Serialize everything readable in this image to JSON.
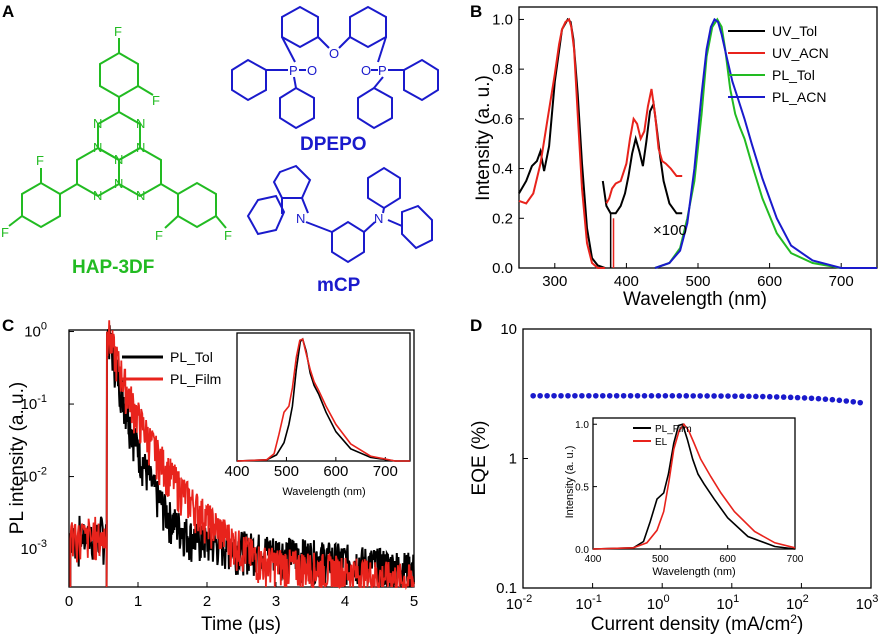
{
  "colors": {
    "black": "#000000",
    "red": "#e8231c",
    "green": "#22bb22",
    "blue": "#1a1acc"
  },
  "panels": {
    "A": "A",
    "B": "B",
    "C": "C",
    "D": "D"
  },
  "panelA": {
    "molecules": [
      "HAP-3DF",
      "DPEPO",
      "mCP"
    ],
    "atoms": {
      "F": "F",
      "N": "N",
      "O": "O",
      "P": "P"
    }
  },
  "chart_data": [
    {
      "panel": "B",
      "type": "line",
      "xlabel": "Wavelength (nm)",
      "ylabel": "Intensity (a. u.)",
      "xlim": [
        250,
        750
      ],
      "ylim": [
        0,
        1.05
      ],
      "xticks": [
        300,
        400,
        500,
        600,
        700
      ],
      "yticks": [
        0.0,
        0.2,
        0.4,
        0.6,
        0.8,
        1.0
      ],
      "ytick_labels": [
        "0.0",
        "0.2",
        "0.4",
        "0.6",
        "0.8",
        "1.0"
      ],
      "annotation": "×100",
      "series": [
        {
          "name": "UV_Tol",
          "color": "#000000",
          "x": [
            250,
            260,
            268,
            275,
            280,
            285,
            292,
            300,
            310,
            318,
            322,
            326,
            332,
            338,
            345,
            352,
            360,
            370
          ],
          "y": [
            0.3,
            0.35,
            0.41,
            0.43,
            0.47,
            0.39,
            0.49,
            0.75,
            0.96,
            1.0,
            0.99,
            0.92,
            0.7,
            0.42,
            0.16,
            0.04,
            0.01,
            0.0
          ]
        },
        {
          "name": "UV_Tol_x100",
          "color": "#000000",
          "x": [
            367,
            372,
            378,
            385,
            392,
            398,
            403,
            408,
            413,
            418,
            423,
            428,
            433,
            438,
            442,
            447,
            452,
            460,
            470,
            478
          ],
          "y": [
            0.35,
            0.25,
            0.22,
            0.22,
            0.25,
            0.3,
            0.37,
            0.46,
            0.52,
            0.47,
            0.41,
            0.51,
            0.63,
            0.66,
            0.57,
            0.45,
            0.35,
            0.26,
            0.22,
            0.22
          ]
        },
        {
          "name": "UV_ACN",
          "color": "#e8231c",
          "x": [
            250,
            260,
            270,
            280,
            290,
            300,
            306,
            310,
            315,
            320,
            323,
            327,
            332,
            338,
            345,
            352,
            360,
            370
          ],
          "y": [
            0.27,
            0.26,
            0.3,
            0.42,
            0.6,
            0.78,
            0.9,
            0.96,
            0.99,
            1.0,
            0.97,
            0.88,
            0.62,
            0.32,
            0.1,
            0.02,
            0.0,
            0.0
          ]
        },
        {
          "name": "UV_ACN_x100",
          "color": "#e8231c",
          "x": [
            372,
            376,
            380,
            385,
            392,
            400,
            405,
            410,
            415,
            420,
            425,
            430,
            435,
            440,
            445,
            450,
            455,
            462,
            470,
            478
          ],
          "y": [
            0.26,
            0.28,
            0.32,
            0.34,
            0.35,
            0.42,
            0.52,
            0.6,
            0.58,
            0.52,
            0.55,
            0.65,
            0.72,
            0.62,
            0.48,
            0.43,
            0.42,
            0.4,
            0.37,
            0.37
          ]
        },
        {
          "name": "PL_Tol",
          "color": "#22bb22",
          "x": [
            440,
            460,
            475,
            485,
            495,
            505,
            512,
            520,
            527,
            533,
            538,
            545,
            552,
            558,
            565,
            575,
            590,
            610,
            630,
            660,
            700,
            750
          ],
          "y": [
            0.0,
            0.02,
            0.08,
            0.2,
            0.35,
            0.62,
            0.85,
            0.97,
            1.0,
            0.97,
            0.88,
            0.72,
            0.62,
            0.57,
            0.52,
            0.42,
            0.28,
            0.14,
            0.06,
            0.02,
            0.0,
            0.0
          ]
        },
        {
          "name": "PL_ACN",
          "color": "#1a1acc",
          "x": [
            440,
            460,
            475,
            485,
            495,
            505,
            512,
            518,
            523,
            528,
            533,
            540,
            548,
            556,
            565,
            575,
            590,
            610,
            630,
            660,
            700,
            750
          ],
          "y": [
            0.0,
            0.02,
            0.07,
            0.18,
            0.4,
            0.7,
            0.88,
            0.97,
            1.0,
            0.99,
            0.94,
            0.85,
            0.75,
            0.68,
            0.6,
            0.5,
            0.36,
            0.2,
            0.09,
            0.03,
            0.0,
            0.0
          ]
        }
      ],
      "markers": [
        {
          "x": 378,
          "y": 0.22
        },
        {
          "x": 382,
          "y": 0.2
        }
      ]
    },
    {
      "panel": "C",
      "type": "line",
      "yscale": "log",
      "xlabel": "Time (μs)",
      "ylabel": "PL intensity (a. u.)",
      "xlim": [
        0,
        5
      ],
      "ylim": [
        0.0003,
        1.05
      ],
      "xticks": [
        0,
        1,
        2,
        3,
        4,
        5
      ],
      "xtick_labels": [
        "0",
        "1",
        "2",
        "3",
        "4",
        "5"
      ],
      "yticks": [
        0.001,
        0.01,
        0.1,
        1
      ],
      "ytick_bases": [
        "10",
        "10",
        "10",
        "10"
      ],
      "ytick_exps": [
        "-3",
        "-2",
        "-1",
        "0"
      ],
      "series": [
        {
          "name": "PL_Tol",
          "color": "#000000",
          "x": [
            0.55,
            0.6,
            0.7,
            0.8,
            0.9,
            1.0,
            1.1,
            1.2,
            1.3,
            1.4,
            1.5,
            1.6,
            1.8,
            2.0
          ],
          "y": [
            1.0,
            0.6,
            0.25,
            0.1,
            0.045,
            0.022,
            0.012,
            0.007,
            0.0045,
            0.003,
            0.0022,
            0.0018,
            0.0013,
            0.0011
          ]
        },
        {
          "name": "PL_Film",
          "color": "#e8231c",
          "x": [
            0.55,
            0.6,
            0.7,
            0.8,
            0.9,
            1.0,
            1.2,
            1.4,
            1.6,
            1.8,
            2.0,
            2.2,
            2.4,
            2.6,
            2.8
          ],
          "y": [
            1.0,
            0.7,
            0.35,
            0.18,
            0.1,
            0.06,
            0.025,
            0.012,
            0.0065,
            0.0038,
            0.0024,
            0.0016,
            0.0011,
            0.0008,
            0.0006
          ]
        }
      ],
      "inset": {
        "xlabel": "Wavelength (nm)",
        "xlim": [
          400,
          750
        ],
        "ylim": [
          0,
          1.05
        ],
        "xticks": [
          400,
          500,
          600,
          700
        ],
        "xtick_labels": [
          "400",
          "500",
          "600",
          "700"
        ],
        "series": [
          {
            "name": "PL_Tol",
            "color": "#000000",
            "x": [
              400,
              460,
              480,
              495,
              505,
              512,
              520,
              528,
              533,
              540,
              548,
              556,
              565,
              580,
              600,
              630,
              670,
              720,
              750
            ],
            "y": [
              0,
              0.01,
              0.05,
              0.15,
              0.3,
              0.45,
              0.75,
              0.98,
              1.0,
              0.9,
              0.72,
              0.62,
              0.55,
              0.4,
              0.24,
              0.1,
              0.03,
              0.0,
              0.0
            ]
          },
          {
            "name": "PL_Film",
            "color": "#e8231c",
            "x": [
              400,
              460,
              475,
              485,
              495,
              505,
              512,
              520,
              527,
              533,
              540,
              548,
              556,
              565,
              580,
              600,
              630,
              670,
              720,
              750
            ],
            "y": [
              0,
              0.01,
              0.06,
              0.22,
              0.4,
              0.45,
              0.6,
              0.85,
              0.99,
              1.0,
              0.88,
              0.75,
              0.65,
              0.58,
              0.45,
              0.3,
              0.14,
              0.04,
              0.0,
              0.0
            ]
          }
        ]
      }
    },
    {
      "panel": "D",
      "type": "scatter",
      "xscale": "log",
      "yscale": "log",
      "xlabel": "Current density (mA/cm²)",
      "xlabel_main": "Current density (mA/cm",
      "xlabel_sup": "2",
      "xlabel_end": ")",
      "ylabel": "EQE (%)",
      "xlim": [
        0.01,
        1000
      ],
      "ylim": [
        0.1,
        10
      ],
      "xticks": [
        0.01,
        0.1,
        1,
        10,
        100,
        1000
      ],
      "xtick_bases": [
        "10",
        "10",
        "10",
        "10",
        "10",
        "10"
      ],
      "xtick_exps": [
        "-2",
        "-1",
        "0",
        "1",
        "2",
        "3"
      ],
      "yticks": [
        0.1,
        1,
        10
      ],
      "ytick_labels": [
        "0.1",
        "1",
        "10"
      ],
      "series": [
        {
          "name": "EQE",
          "color": "#1a1acc",
          "x_start": 0.014,
          "x_end": 700,
          "y_start": 3.05,
          "y_end": 2.7
        }
      ],
      "inset": {
        "xlabel": "Wavelength (nm)",
        "ylabel": "Intensity (a. u.)",
        "xlim": [
          400,
          700
        ],
        "ylim": [
          0,
          1.05
        ],
        "xticks": [
          400,
          500,
          600,
          700
        ],
        "xtick_labels": [
          "400",
          "500",
          "600",
          "700"
        ],
        "yticks": [
          0,
          0.5,
          1.0
        ],
        "ytick_labels": [
          "0.0",
          "0.5",
          "1.0"
        ],
        "series": [
          {
            "name": "PL_Film",
            "color": "#000000",
            "x": [
              400,
              460,
              475,
              485,
              495,
              505,
              512,
              520,
              527,
              533,
              540,
              548,
              556,
              565,
              580,
              600,
              630,
              670,
              700
            ],
            "y": [
              0,
              0.01,
              0.06,
              0.22,
              0.4,
              0.45,
              0.6,
              0.85,
              0.99,
              1.0,
              0.88,
              0.72,
              0.6,
              0.52,
              0.4,
              0.25,
              0.1,
              0.02,
              0.0
            ]
          },
          {
            "name": "EL",
            "color": "#e8231c",
            "x": [
              400,
              460,
              480,
              495,
              505,
              513,
              520,
              528,
              535,
              542,
              550,
              560,
              575,
              590,
              610,
              640,
              670,
              700
            ],
            "y": [
              0,
              0.01,
              0.05,
              0.15,
              0.3,
              0.55,
              0.8,
              0.95,
              1.0,
              0.95,
              0.85,
              0.72,
              0.58,
              0.45,
              0.3,
              0.14,
              0.05,
              0.01
            ]
          }
        ]
      }
    }
  ]
}
